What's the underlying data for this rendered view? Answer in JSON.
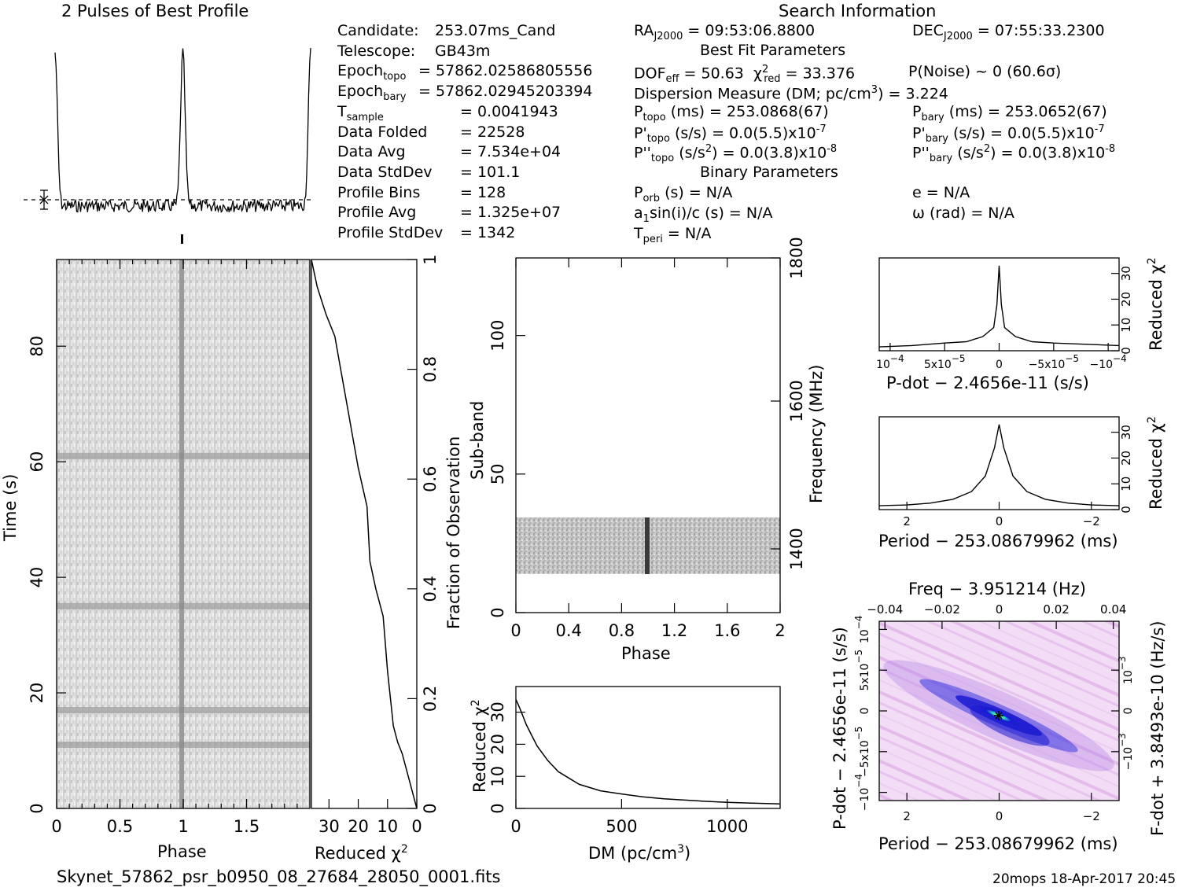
{
  "profile_title": "2 Pulses of Best Profile",
  "search_info_title": "Search Information",
  "file_name": "Skynet_57862_psr_b0950_08_27684_28050_0001.fits",
  "footer_stamp": "20mops 18-Apr-2017 20:45",
  "candidate_info": [
    {
      "label": "Candidate:",
      "value": "253.07ms_Cand"
    },
    {
      "label": "Telescope:",
      "value": "GB43m"
    },
    {
      "label": "Epoch",
      "sub": "topo",
      "value": "= 57862.02586805556"
    },
    {
      "label": "Epoch",
      "sub": "bary",
      "value": "= 57862.02945203394"
    },
    {
      "label": "T",
      "sub": "sample",
      "value": "=  0.0041943"
    },
    {
      "label": "Data Folded",
      "value": "=  22528"
    },
    {
      "label": "Data Avg",
      "value": "=  7.534e+04"
    },
    {
      "label": "Data StdDev",
      "value": "=  101.1"
    },
    {
      "label": "Profile Bins",
      "value": "=  128"
    },
    {
      "label": "Profile Avg",
      "value": "=  1.325e+07"
    },
    {
      "label": "Profile StdDev",
      "value": "=  1342"
    }
  ],
  "search_info": {
    "ra_label": "RA",
    "ra_sub": "J2000",
    "ra_value": "= 09:53:06.8800",
    "dec_label": "DEC",
    "dec_sub": "J2000",
    "dec_value": "= 07:55:33.2300",
    "best_fit_title": "Best Fit Parameters",
    "dof": "DOF",
    "dof_sub": "eff",
    "dof_value": "= 50.63",
    "chi_label": "χ",
    "chi_sup": "2",
    "chi_sub": "red",
    "chi_value": "= 33.376",
    "pnoise": "P(Noise) ~ 0   (60.6σ)",
    "dm_line": "Dispersion Measure (DM; pc/cm",
    "dm_sup": "3",
    "dm_value": ") = 3.224",
    "ptopo_label": "P",
    "ptopo_sub": "topo",
    "ptopo_value": "(ms) =  253.0868(67)",
    "pbary_label": "P",
    "pbary_sub": "bary",
    "pbary_value": "(ms) =  253.0652(67)",
    "pdtopo_label": "P'",
    "pdtopo_sub": "topo",
    "pdtopo_value": "(s/s) = 0.0(5.5)x10",
    "pdtopo_exp": "-7",
    "pdbary_label": "P'",
    "pdbary_sub": "bary",
    "pdbary_value": "(s/s) = 0.0(5.5)x10",
    "pdbary_exp": "-7",
    "pddtopo_label": "P''",
    "pddtopo_sub": "topo",
    "pddtopo_value": "(s/s",
    "pddtopo_sup": "2",
    "pddtopo_value2": ") = 0.0(3.8)x10",
    "pddtopo_exp": "-8",
    "pddbary_label": "P''",
    "pddbary_sub": "bary",
    "pddbary_value": "(s/s",
    "pddbary_sup": "2",
    "pddbary_value2": ") = 0.0(3.8)x10",
    "pddbary_exp": "-8",
    "binary_title": "Binary Parameters",
    "porb_label": "P",
    "porb_sub": "orb",
    "porb_value": "(s) = N/A",
    "e_value": "e = N/A",
    "a1_label": "a",
    "a1_sub": "1",
    "a1_value": "sin(i)/c (s) = N/A",
    "omega_value": "ω (rad) = N/A",
    "tperi_label": "T",
    "tperi_sub": "peri",
    "tperi_value": "= N/A"
  },
  "chart_data": [
    {
      "type": "line",
      "name": "profile",
      "title": "2 Pulses of Best Profile",
      "xlim": [
        0,
        2
      ],
      "pulse_phases": [
        0.0,
        1.0,
        2.0
      ]
    },
    {
      "type": "heatmap",
      "name": "time-phase",
      "xlabel": "Phase",
      "ylabel": "Time (s)",
      "xlim": [
        0,
        2
      ],
      "ylim": [
        0,
        95
      ],
      "x_ticks": [
        "0",
        "0.5",
        "1",
        "1.5"
      ],
      "y_ticks": [
        "0",
        "20",
        "40",
        "60",
        "80"
      ],
      "right_axis_label": "Fraction of Observation",
      "right_ticks": [
        "0",
        "0.2",
        "0.4",
        "0.6",
        "0.8",
        "1"
      ],
      "pulse_phase": 1.0,
      "bright_rows_s": [
        61,
        35,
        17,
        11
      ]
    },
    {
      "type": "line",
      "name": "chi2-vs-time",
      "xlabel": "Reduced χ",
      "xlabel_sup": "2",
      "x_ticks": [
        "30",
        "20",
        "10",
        "0"
      ],
      "xlim": [
        36,
        0
      ],
      "ylim": [
        0,
        1
      ],
      "x": [
        0.0,
        2.5,
        5.0,
        6.5,
        8.0,
        10.0,
        11.5,
        14.0,
        16.0,
        17.0,
        20.0,
        22.0,
        24.0,
        26.0,
        28.0,
        31.0,
        34.0,
        36.0
      ],
      "y": [
        0.0,
        0.05,
        0.1,
        0.12,
        0.15,
        0.25,
        0.35,
        0.4,
        0.45,
        0.55,
        0.62,
        0.68,
        0.74,
        0.8,
        0.86,
        0.9,
        0.95,
        1.0
      ]
    },
    {
      "type": "heatmap",
      "name": "subband-phase",
      "xlabel": "Phase",
      "ylabel": "Sub-band",
      "x_ticks": [
        "0",
        "0.4",
        "0.8",
        "1.2",
        "1.6",
        "2"
      ],
      "y_ticks": [
        "0",
        "50",
        "100"
      ],
      "right_axis_label": "Frequency (MHz)",
      "right_ticks": [
        "1400",
        "1600",
        "1800"
      ],
      "xlim": [
        0,
        2
      ],
      "ylim": [
        0,
        128
      ],
      "active_subbands": [
        14,
        35
      ],
      "pulse_phase": 1.0
    },
    {
      "type": "line",
      "name": "chi2-vs-dm",
      "xlabel": "DM (pc/cm",
      "xlabel_sup": "3",
      "xlabel_tail": ")",
      "ylabel": "Reduced χ",
      "ylabel_sup": "2",
      "x_ticks": [
        "0",
        "500",
        "1000"
      ],
      "y_ticks": [
        "0",
        "10",
        "20",
        "30"
      ],
      "xlim": [
        0,
        1250
      ],
      "ylim": [
        0,
        38
      ],
      "x": [
        0,
        20,
        50,
        100,
        150,
        200,
        250,
        300,
        400,
        500,
        600,
        700,
        800,
        900,
        1000,
        1100,
        1200,
        1250
      ],
      "y": [
        34,
        31,
        26,
        19.5,
        15,
        11.5,
        9.5,
        7.5,
        5.5,
        4.5,
        3.6,
        3.0,
        2.6,
        2.2,
        1.9,
        1.7,
        1.5,
        1.4
      ]
    },
    {
      "type": "line",
      "name": "chi2-vs-pdot",
      "xlabel": "P-dot − 2.4656e-11 (s/s)",
      "ylabel": "Reduced χ",
      "ylabel_sup": "2",
      "x_ticks": [
        "10",
        "5x10",
        "0",
        "−5x10",
        "−10"
      ],
      "x_tick_exps": [
        "−4",
        "−5",
        "",
        "−5",
        "−4"
      ],
      "y_ticks": [
        "0",
        "10",
        "20",
        "30"
      ],
      "xlim": [
        0.00011,
        -0.00011
      ],
      "ylim": [
        0,
        36
      ],
      "x": [
        0.00011,
        8e-05,
        5e-05,
        3e-05,
        1.5e-05,
        5e-06,
        2e-06,
        0,
        -2e-06,
        -5e-06,
        -1.5e-05,
        -3e-05,
        -5e-05,
        -8e-05,
        -0.00011
      ],
      "y": [
        1.5,
        2.0,
        3.0,
        3.5,
        5.5,
        9.0,
        18.0,
        33.0,
        18.0,
        9.0,
        5.5,
        3.5,
        3.0,
        2.5,
        2.0
      ]
    },
    {
      "type": "line",
      "name": "chi2-vs-period",
      "xlabel": "Period − 253.08679962 (ms)",
      "ylabel": "Reduced χ",
      "ylabel_sup": "2",
      "x_ticks": [
        "2",
        "0",
        "−2"
      ],
      "y_ticks": [
        "0",
        "10",
        "20",
        "30"
      ],
      "xlim": [
        2.6,
        -2.6
      ],
      "ylim": [
        0,
        36
      ],
      "x": [
        2.6,
        2.0,
        1.5,
        1.0,
        0.6,
        0.3,
        0.1,
        0,
        -0.1,
        -0.3,
        -0.6,
        -1.0,
        -1.5,
        -2.0,
        -2.6
      ],
      "y": [
        1.5,
        1.8,
        2.5,
        4.0,
        7.0,
        13.0,
        24.0,
        33.0,
        24.0,
        13.0,
        7.0,
        4.0,
        2.5,
        1.8,
        1.5
      ]
    },
    {
      "type": "heatmap",
      "name": "period-pdot",
      "top_label": "Freq − 3.951214 (Hz)",
      "top_ticks": [
        "−0.04",
        "−0.02",
        "0",
        "0.02",
        "0.04"
      ],
      "xlabel": "Period − 253.08679962 (ms)",
      "x_ticks": [
        "2",
        "0",
        "−2"
      ],
      "ylabel": "P-dot − 2.4656e-11 (s/s)",
      "y_ticks": [
        "10",
        "5x10",
        "0",
        "−5x10",
        "−10"
      ],
      "y_tick_exps": [
        "−4",
        "−5",
        "",
        "−5",
        "−4"
      ],
      "right_label": "F-dot + 3.8493e-10 (Hz/s)",
      "right_ticks": [
        "−10",
        "0",
        "10"
      ],
      "right_tick_exps": [
        "−3",
        "",
        "−3"
      ],
      "colors": {
        "bg": "#f1d6f3",
        "ridge": "#1a1ad0",
        "core": "#30e6c8",
        "peak": "#7dff3a"
      }
    }
  ]
}
